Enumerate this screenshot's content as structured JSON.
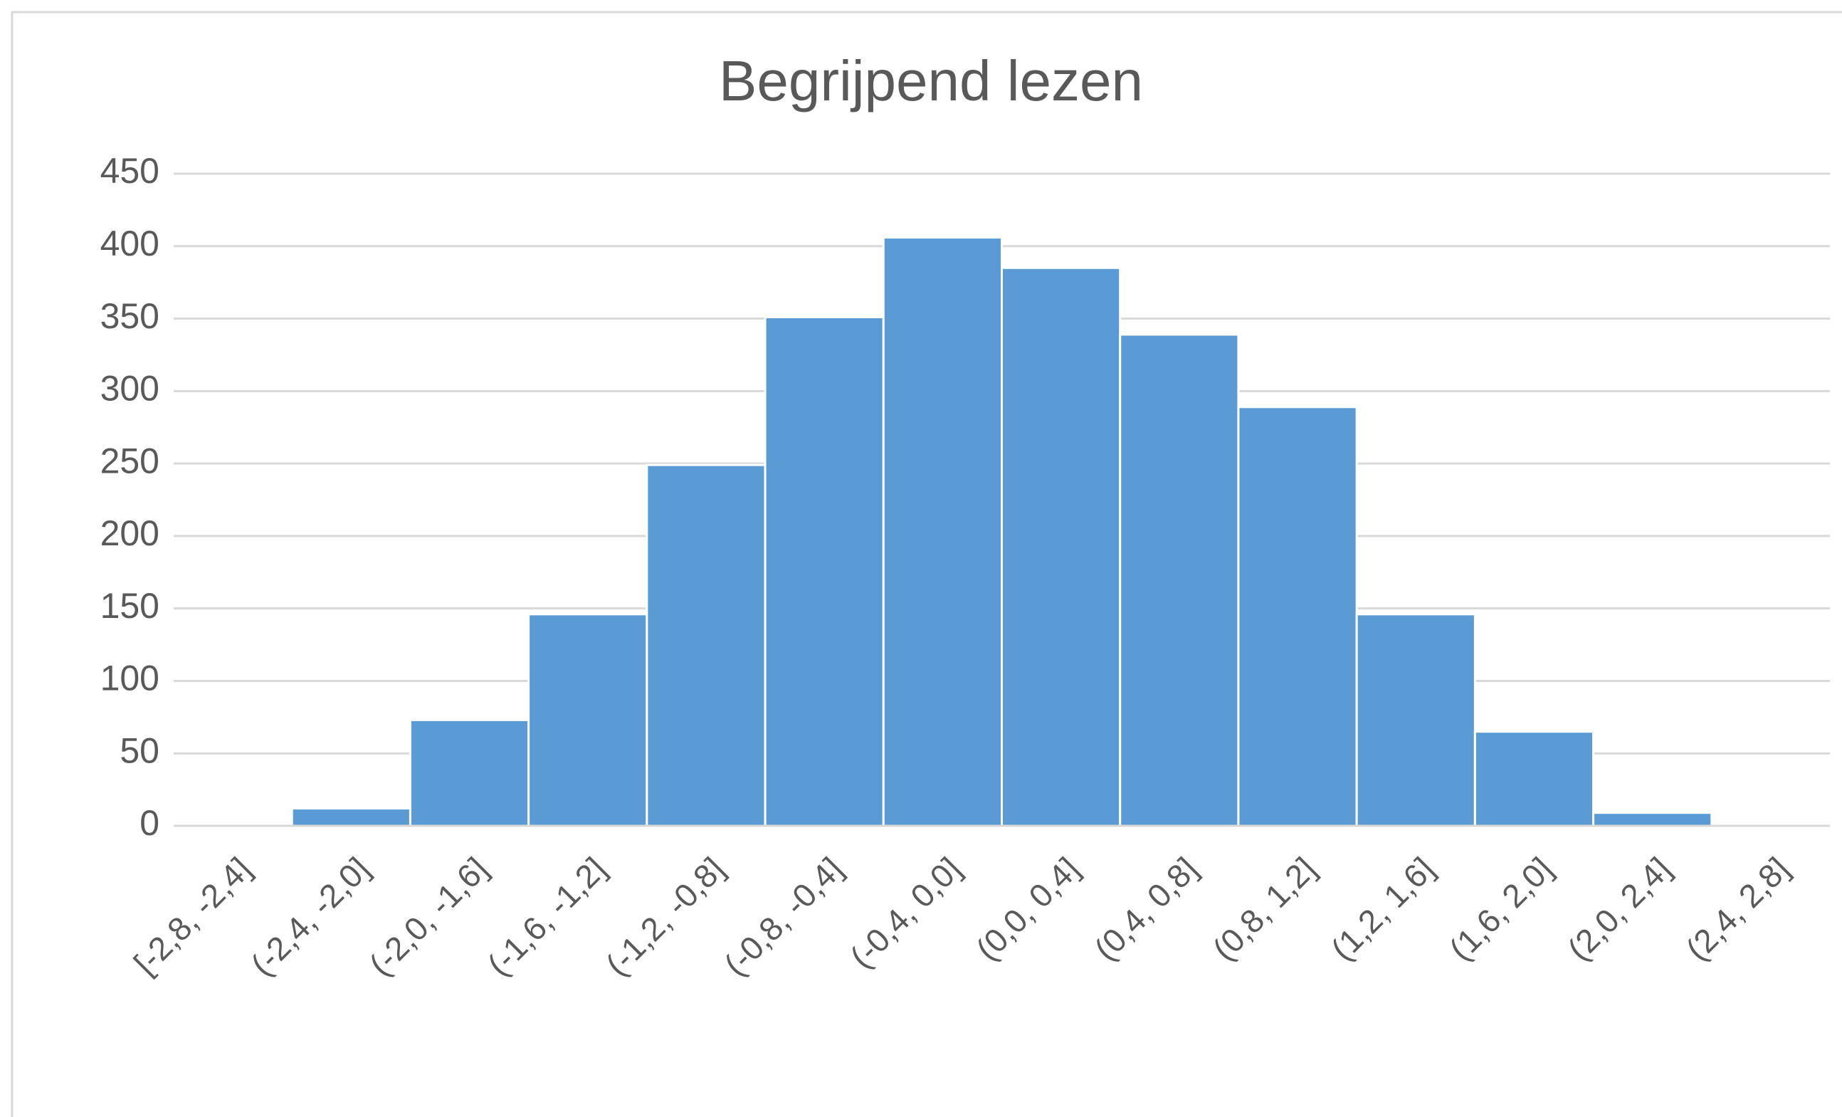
{
  "chart_data": {
    "type": "bar",
    "title": "Begrijpend lezen",
    "categories": [
      "[-2,8, -2,4]",
      "(-2,4, -2,0]",
      "(-2,0, -1,6]",
      "(-1,6, -1,2]",
      "(-1,2, -0,8]",
      "(-0,8, -0,4]",
      "(-0,4, 0,0]",
      "(0,0, 0,4]",
      "(0,4, 0,8]",
      "(0,8, 1,2]",
      "(1,2, 1,6]",
      "(1,6, 2,0]",
      "(2,0, 2,4]",
      "(2,4, 2,8]"
    ],
    "values": [
      0,
      12,
      73,
      146,
      249,
      351,
      406,
      385,
      339,
      289,
      146,
      65,
      9,
      0
    ],
    "color": "#5b9bd5",
    "ylim": [
      0,
      450
    ],
    "yticks": [
      0,
      50,
      100,
      150,
      200,
      250,
      300,
      350,
      400,
      450
    ],
    "grid": true
  }
}
